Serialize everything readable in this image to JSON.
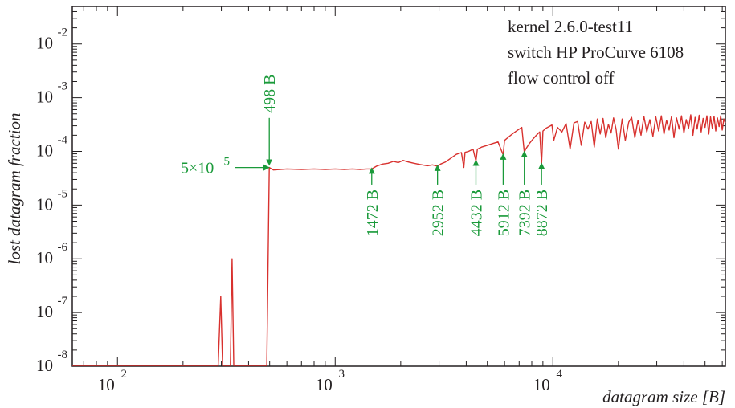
{
  "chart_data": {
    "type": "line",
    "xlabel": "datagram size [B]",
    "ylabel": "lost datagram fraction",
    "x_scale": "log",
    "y_scale": "log",
    "xlim": [
      62,
      62000
    ],
    "ylim": [
      1e-08,
      0.05
    ],
    "x_ticks": [
      {
        "value": 100,
        "base": "10",
        "exp": "2"
      },
      {
        "value": 1000,
        "base": "10",
        "exp": "3"
      },
      {
        "value": 10000,
        "base": "10",
        "exp": "4"
      }
    ],
    "y_ticks": [
      {
        "value": 1e-08,
        "base": "10",
        "exp": "-8"
      },
      {
        "value": 1e-07,
        "base": "10",
        "exp": "-7"
      },
      {
        "value": 1e-06,
        "base": "10",
        "exp": "-6"
      },
      {
        "value": 1e-05,
        "base": "10",
        "exp": "-5"
      },
      {
        "value": 0.0001,
        "base": "10",
        "exp": "-4"
      },
      {
        "value": 0.001,
        "base": "10",
        "exp": "-3"
      },
      {
        "value": 0.01,
        "base": "10",
        "exp": "-2"
      },
      {
        "value": 0.1,
        "base": "10",
        "exp": "-1"
      }
    ],
    "info_lines": [
      "kernel 2.6.0-test11",
      "switch HP ProCurve 6108",
      "flow control off"
    ],
    "annotations": {
      "value_label": {
        "text": "5×10",
        "exp": "−5",
        "y": 5e-05
      },
      "size_markers": [
        {
          "label": "498 B",
          "x": 498,
          "arrow_from": 0.00042,
          "arrow_to": 5.8e-05,
          "position": "above"
        },
        {
          "label": "1472 B",
          "x": 1472,
          "arrow_from": 2.4e-05,
          "arrow_to": 4.7e-05,
          "position": "below"
        },
        {
          "label": "2952 B",
          "x": 2952,
          "arrow_from": 2.4e-05,
          "arrow_to": 5.3e-05,
          "position": "below"
        },
        {
          "label": "4432 B",
          "x": 4432,
          "arrow_from": 2.4e-05,
          "arrow_to": 6.6e-05,
          "position": "below"
        },
        {
          "label": "5912 B",
          "x": 5912,
          "arrow_from": 2.4e-05,
          "arrow_to": 8.6e-05,
          "position": "below"
        },
        {
          "label": "7392 B",
          "x": 7392,
          "arrow_from": 2.4e-05,
          "arrow_to": 9.6e-05,
          "position": "below"
        },
        {
          "label": "8872 B",
          "x": 8872,
          "arrow_from": 2.4e-05,
          "arrow_to": 5.8e-05,
          "position": "below"
        }
      ]
    },
    "series": [
      {
        "color": "#d8312e",
        "points": [
          [
            62,
            1e-08
          ],
          [
            290,
            1e-08
          ],
          [
            298,
            2e-07
          ],
          [
            304,
            1e-08
          ],
          [
            330,
            1e-08
          ],
          [
            336,
            1e-06
          ],
          [
            342,
            1e-08
          ],
          [
            485,
            1e-08
          ],
          [
            498,
            5e-05
          ],
          [
            520,
            4.5e-05
          ],
          [
            600,
            4.7e-05
          ],
          [
            700,
            4.6e-05
          ],
          [
            800,
            4.7e-05
          ],
          [
            900,
            4.6e-05
          ],
          [
            1000,
            4.7e-05
          ],
          [
            1100,
            4.6e-05
          ],
          [
            1200,
            4.7e-05
          ],
          [
            1300,
            4.6e-05
          ],
          [
            1400,
            4.7e-05
          ],
          [
            1472,
            4.7e-05
          ],
          [
            1550,
            5.3e-05
          ],
          [
            1650,
            5.8e-05
          ],
          [
            1750,
            6e-05
          ],
          [
            1850,
            6.5e-05
          ],
          [
            1950,
            6.2e-05
          ],
          [
            2050,
            6.8e-05
          ],
          [
            2150,
            6.4e-05
          ],
          [
            2300,
            6e-05
          ],
          [
            2450,
            5.7e-05
          ],
          [
            2650,
            5.4e-05
          ],
          [
            2800,
            5.6e-05
          ],
          [
            2952,
            5.3e-05
          ],
          [
            3050,
            5.8e-05
          ],
          [
            3200,
            6.3e-05
          ],
          [
            3400,
            7.5e-05
          ],
          [
            3600,
            8.8e-05
          ],
          [
            3800,
            9.5e-05
          ],
          [
            3900,
            5e-05
          ],
          [
            3950,
            9.6e-05
          ],
          [
            4100,
            0.0001
          ],
          [
            4300,
            0.00011
          ],
          [
            4432,
            6.6e-05
          ],
          [
            4500,
            0.00011
          ],
          [
            4700,
            0.00012
          ],
          [
            5000,
            0.00013
          ],
          [
            5300,
            0.00014
          ],
          [
            5600,
            0.00015
          ],
          [
            5912,
            8.6e-05
          ],
          [
            6000,
            0.00016
          ],
          [
            6300,
            0.00019
          ],
          [
            6600,
            0.00022
          ],
          [
            6900,
            0.00025
          ],
          [
            7200,
            0.00028
          ],
          [
            7392,
            9.6e-05
          ],
          [
            7500,
            0.00011
          ],
          [
            7800,
            0.00014
          ],
          [
            8100,
            0.00017
          ],
          [
            8400,
            0.0002
          ],
          [
            8700,
            0.00023
          ],
          [
            8872,
            5.8e-05
          ],
          [
            9000,
            0.00024
          ],
          [
            9300,
            0.00027
          ],
          [
            9600,
            0.00029
          ],
          [
            9900,
            0.00031
          ],
          [
            10100,
            0.00016
          ],
          [
            10500,
            0.00028
          ],
          [
            11000,
            0.00023
          ],
          [
            11500,
            0.00033
          ],
          [
            12000,
            0.00011
          ],
          [
            12500,
            0.00034
          ],
          [
            13000,
            0.00036
          ],
          [
            13500,
            0.00013
          ],
          [
            14000,
            0.00035
          ],
          [
            14500,
            0.00026
          ],
          [
            15000,
            0.00036
          ],
          [
            15500,
            0.00012
          ],
          [
            16000,
            0.0004
          ],
          [
            16500,
            0.00021
          ],
          [
            17000,
            0.00041
          ],
          [
            17500,
            0.00018
          ],
          [
            18000,
            0.00032
          ],
          [
            18500,
            0.00022
          ],
          [
            19000,
            0.00042
          ],
          [
            19500,
            0.00026
          ],
          [
            20000,
            0.00011
          ],
          [
            20800,
            0.0004
          ],
          [
            21500,
            0.00016
          ],
          [
            22300,
            0.00035
          ],
          [
            23000,
            0.00043
          ],
          [
            23800,
            0.00018
          ],
          [
            24600,
            0.00038
          ],
          [
            25400,
            0.0002
          ],
          [
            26200,
            0.00045
          ],
          [
            27000,
            0.00023
          ],
          [
            27900,
            0.00039
          ],
          [
            28800,
            0.00019
          ],
          [
            29700,
            0.00044
          ],
          [
            30600,
            0.00024
          ],
          [
            31500,
            0.00046
          ],
          [
            32400,
            0.00021
          ],
          [
            33300,
            0.00038
          ],
          [
            34200,
            0.00025
          ],
          [
            35100,
            0.00045
          ],
          [
            36000,
            0.00018
          ],
          [
            37000,
            0.00042
          ],
          [
            38000,
            0.00026
          ],
          [
            39000,
            0.00046
          ],
          [
            40000,
            0.00022
          ],
          [
            41000,
            0.00039
          ],
          [
            42000,
            0.00027
          ],
          [
            43000,
            0.00048
          ],
          [
            44000,
            0.0002
          ],
          [
            45000,
            0.00043
          ],
          [
            46000,
            0.00026
          ],
          [
            47000,
            0.00047
          ],
          [
            48000,
            0.00023
          ],
          [
            49000,
            0.00041
          ],
          [
            50000,
            0.00028
          ],
          [
            51000,
            0.00046
          ],
          [
            52000,
            0.00021
          ],
          [
            53000,
            0.00044
          ],
          [
            54000,
            0.00027
          ],
          [
            55000,
            0.00045
          ],
          [
            56000,
            0.00024
          ],
          [
            57000,
            0.00042
          ],
          [
            58000,
            0.00029
          ],
          [
            59000,
            0.00046
          ],
          [
            60000,
            0.00025
          ],
          [
            61000,
            0.0004
          ],
          [
            62000,
            0.00034
          ]
        ]
      }
    ]
  }
}
